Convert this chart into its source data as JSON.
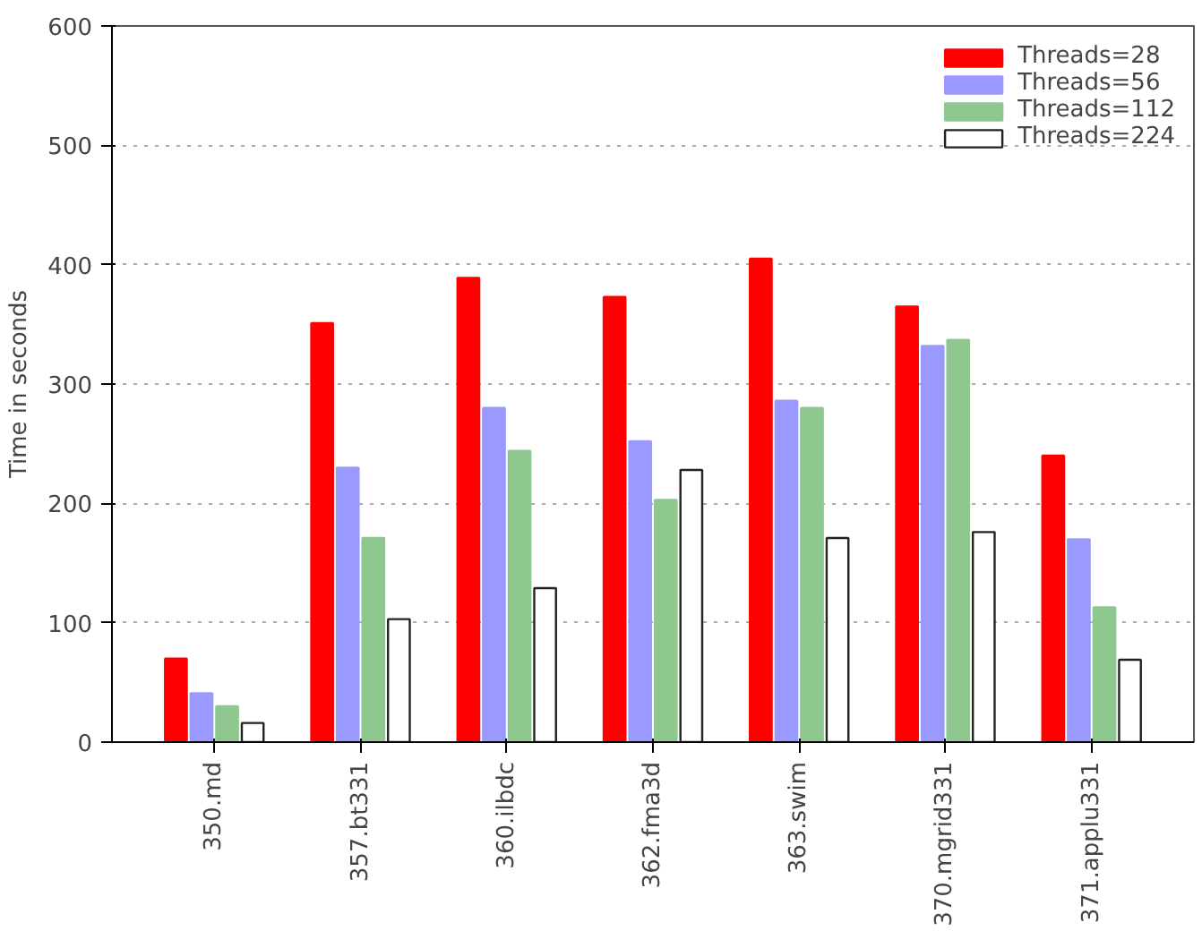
{
  "chart_data": {
    "type": "bar",
    "ylabel": "Time in seconds",
    "categories": [
      "350.md",
      "357.bt331",
      "360.ilbdc",
      "362.fma3d",
      "363.swim",
      "370.mgrid331",
      "371.applu331"
    ],
    "series": [
      {
        "name": "Threads=28",
        "color": "#ff0000",
        "values": [
          70,
          351,
          389,
          373,
          405,
          365,
          240
        ]
      },
      {
        "name": "Threads=56",
        "color": "#9999ff",
        "values": [
          41,
          230,
          280,
          252,
          286,
          332,
          170
        ]
      },
      {
        "name": "Threads=112",
        "color": "#8fc88f",
        "values": [
          30,
          171,
          244,
          203,
          280,
          337,
          113
        ]
      },
      {
        "name": "Threads=224",
        "color": "#ffffff",
        "values": [
          16,
          103,
          129,
          228,
          171,
          176,
          69
        ]
      }
    ],
    "ylim": [
      0,
      600
    ],
    "yticks": [
      0,
      100,
      200,
      300,
      400,
      500,
      600
    ],
    "grid": "y",
    "legend": "top right"
  }
}
